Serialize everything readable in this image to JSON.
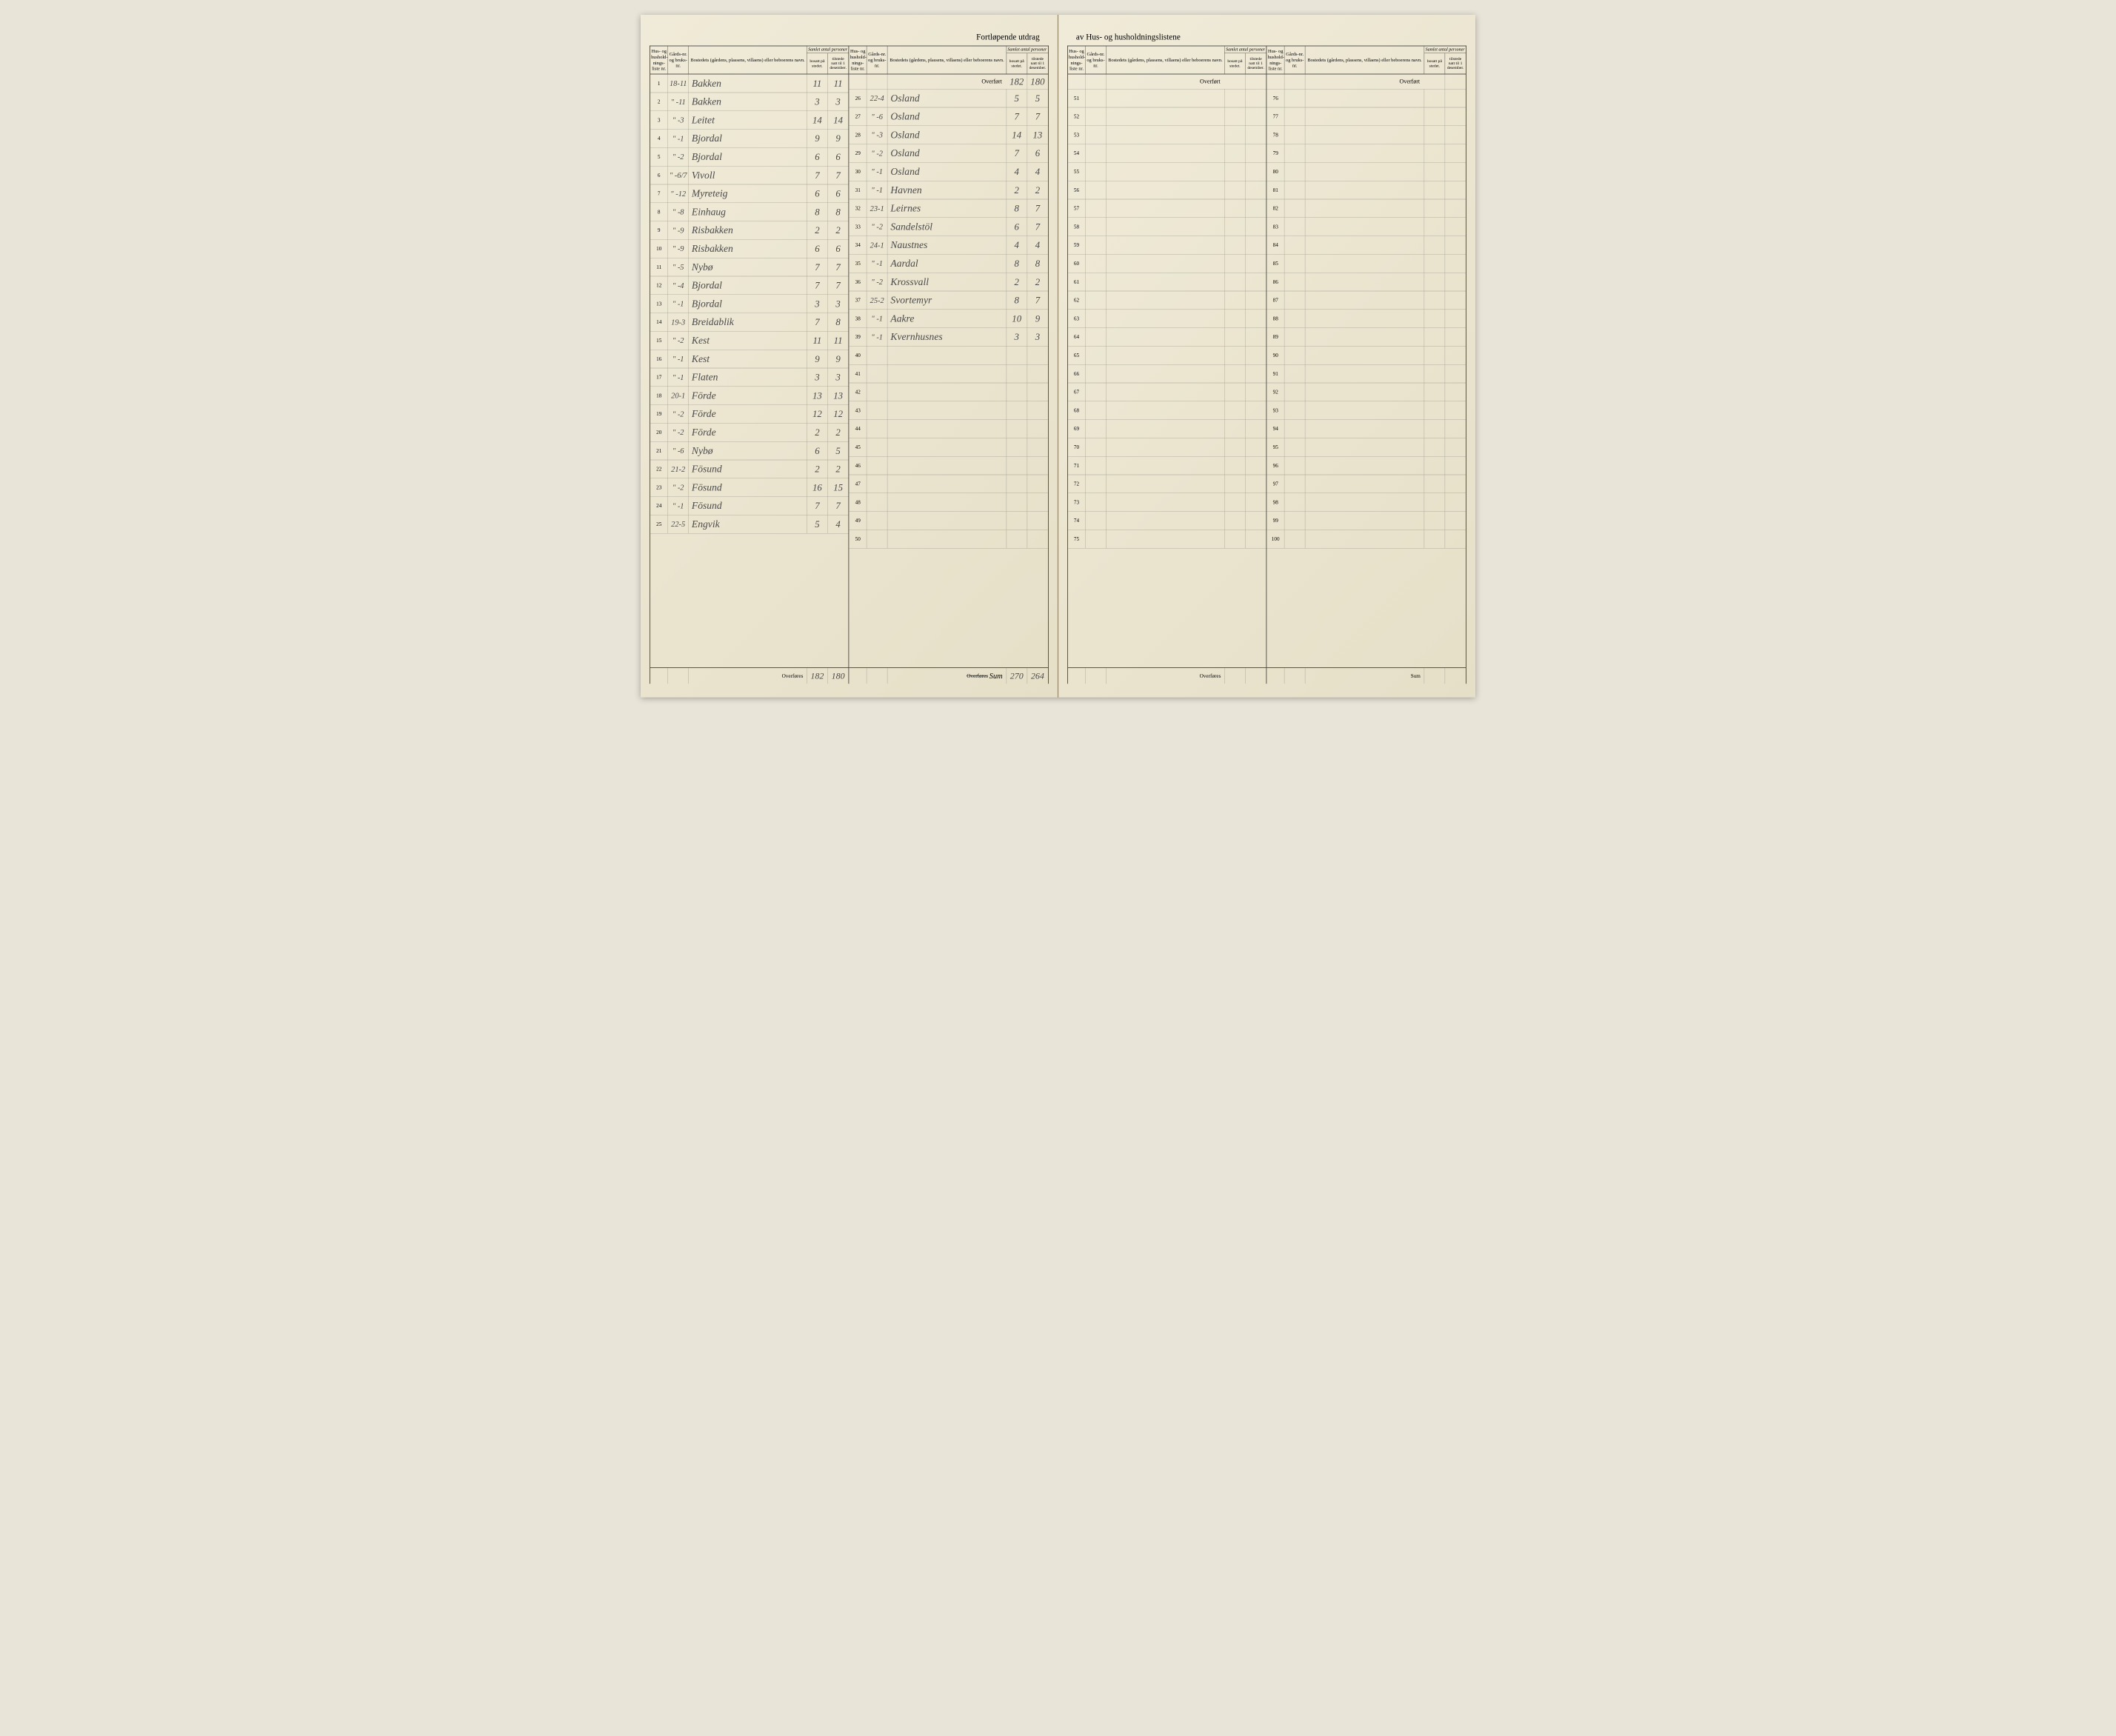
{
  "header": {
    "left_title": "Fortløpende utdrag",
    "right_title": "av Hus- og husholdningslistene"
  },
  "columns": {
    "liste": "Hus- og hushold-nings-liste nr.",
    "gard": "Gårds-nr. og bruks-nr.",
    "name": "Bostedets (gårdens, plassens, villaens) eller beboerens navn.",
    "samlet_top": "Samlet antal personer",
    "bosatt": "bosatt på stedet.",
    "tilstede": "tilstede natt til 1 desember."
  },
  "labels": {
    "overfort": "Overført",
    "overfores": "Overføres",
    "overfores_strike": "Overføres",
    "sum": "Sum",
    "sum_hand": "Sum"
  },
  "left_page": {
    "halfA": {
      "rows": [
        {
          "liste": "1",
          "gard": "18-11",
          "name": "Bakken",
          "bosatt": "11",
          "tilstede": "11"
        },
        {
          "liste": "2",
          "gard": "\" -11",
          "name": "Bakken",
          "bosatt": "3",
          "tilstede": "3"
        },
        {
          "liste": "3",
          "gard": "\" -3",
          "name": "Leitet",
          "bosatt": "14",
          "tilstede": "14"
        },
        {
          "liste": "4",
          "gard": "\" -1",
          "name": "Bjordal",
          "bosatt": "9",
          "tilstede": "9"
        },
        {
          "liste": "5",
          "gard": "\" -2",
          "name": "Bjordal",
          "bosatt": "6",
          "tilstede": "6"
        },
        {
          "liste": "6",
          "gard": "\" -6/7",
          "name": "Vivoll",
          "bosatt": "7",
          "tilstede": "7"
        },
        {
          "liste": "7",
          "gard": "\" -12",
          "name": "Myreteig",
          "bosatt": "6",
          "tilstede": "6"
        },
        {
          "liste": "8",
          "gard": "\" -8",
          "name": "Einhaug",
          "bosatt": "8",
          "tilstede": "8"
        },
        {
          "liste": "9",
          "gard": "\" -9",
          "name": "Risbakken",
          "bosatt": "2",
          "tilstede": "2"
        },
        {
          "liste": "10",
          "gard": "\" -9",
          "name": "Risbakken",
          "bosatt": "6",
          "tilstede": "6"
        },
        {
          "liste": "11",
          "gard": "\" -5",
          "name": "Nybø",
          "bosatt": "7",
          "tilstede": "7"
        },
        {
          "liste": "12",
          "gard": "\" -4",
          "name": "Bjordal",
          "bosatt": "7",
          "tilstede": "7"
        },
        {
          "liste": "13",
          "gard": "\" -1",
          "name": "Bjordal",
          "bosatt": "3",
          "tilstede": "3"
        },
        {
          "liste": "14",
          "gard": "19-3",
          "name": "Breidablik",
          "bosatt": "7",
          "tilstede": "8"
        },
        {
          "liste": "15",
          "gard": "\" -2",
          "name": "Kest",
          "bosatt": "11",
          "tilstede": "11"
        },
        {
          "liste": "16",
          "gard": "\" -1",
          "name": "Kest",
          "bosatt": "9",
          "tilstede": "9"
        },
        {
          "liste": "17",
          "gard": "\" -1",
          "name": "Flaten",
          "bosatt": "3",
          "tilstede": "3"
        },
        {
          "liste": "18",
          "gard": "20-1",
          "name": "Förde",
          "bosatt": "13",
          "tilstede": "13"
        },
        {
          "liste": "19",
          "gard": "\" -2",
          "name": "Förde",
          "bosatt": "12",
          "tilstede": "12"
        },
        {
          "liste": "20",
          "gard": "\" -2",
          "name": "Förde",
          "bosatt": "2",
          "tilstede": "2"
        },
        {
          "liste": "21",
          "gard": "\" -6",
          "name": "Nybø",
          "bosatt": "6",
          "tilstede": "5"
        },
        {
          "liste": "22",
          "gard": "21-2",
          "name": "Fösund",
          "bosatt": "2",
          "tilstede": "2"
        },
        {
          "liste": "23",
          "gard": "\" -2",
          "name": "Fösund",
          "bosatt": "16",
          "tilstede": "15"
        },
        {
          "liste": "24",
          "gard": "\" -1",
          "name": "Fösund",
          "bosatt": "7",
          "tilstede": "7"
        },
        {
          "liste": "25",
          "gard": "22-5",
          "name": "Engvik",
          "bosatt": "5",
          "tilstede": "4"
        }
      ],
      "footer": {
        "bosatt": "182",
        "tilstede": "180"
      }
    },
    "halfB": {
      "overfort": {
        "bosatt": "182",
        "tilstede": "180"
      },
      "rows": [
        {
          "liste": "26",
          "gard": "22-4",
          "name": "Osland",
          "bosatt": "5",
          "tilstede": "5"
        },
        {
          "liste": "27",
          "gard": "\" -6",
          "name": "Osland",
          "bosatt": "7",
          "tilstede": "7"
        },
        {
          "liste": "28",
          "gard": "\" -3",
          "name": "Osland",
          "bosatt": "14",
          "tilstede": "13"
        },
        {
          "liste": "29",
          "gard": "\" -2",
          "name": "Osland",
          "bosatt": "7",
          "tilstede": "6"
        },
        {
          "liste": "30",
          "gard": "\" -1",
          "name": "Osland",
          "bosatt": "4",
          "tilstede": "4"
        },
        {
          "liste": "31",
          "gard": "\" -1",
          "name": "Havnen",
          "bosatt": "2",
          "tilstede": "2"
        },
        {
          "liste": "32",
          "gard": "23-1",
          "name": "Leirnes",
          "bosatt": "8",
          "tilstede": "7"
        },
        {
          "liste": "33",
          "gard": "\" -2",
          "name": "Sandelstöl",
          "bosatt": "6",
          "tilstede": "7"
        },
        {
          "liste": "34",
          "gard": "24-1",
          "name": "Naustnes",
          "bosatt": "4",
          "tilstede": "4"
        },
        {
          "liste": "35",
          "gard": "\" -1",
          "name": "Aardal",
          "bosatt": "8",
          "tilstede": "8"
        },
        {
          "liste": "36",
          "gard": "\" -2",
          "name": "Krossvall",
          "bosatt": "2",
          "tilstede": "2"
        },
        {
          "liste": "37",
          "gard": "25-2",
          "name": "Svortemyr",
          "bosatt": "8",
          "tilstede": "7"
        },
        {
          "liste": "38",
          "gard": "\" -1",
          "name": "Aakre",
          "bosatt": "10",
          "tilstede": "9"
        },
        {
          "liste": "39",
          "gard": "\" -1",
          "name": "Kvernhusnes",
          "bosatt": "3",
          "tilstede": "3"
        },
        {
          "liste": "40",
          "gard": "",
          "name": "",
          "bosatt": "",
          "tilstede": ""
        },
        {
          "liste": "41",
          "gard": "",
          "name": "",
          "bosatt": "",
          "tilstede": ""
        },
        {
          "liste": "42",
          "gard": "",
          "name": "",
          "bosatt": "",
          "tilstede": ""
        },
        {
          "liste": "43",
          "gard": "",
          "name": "",
          "bosatt": "",
          "tilstede": ""
        },
        {
          "liste": "44",
          "gard": "",
          "name": "",
          "bosatt": "",
          "tilstede": ""
        },
        {
          "liste": "45",
          "gard": "",
          "name": "",
          "bosatt": "",
          "tilstede": ""
        },
        {
          "liste": "46",
          "gard": "",
          "name": "",
          "bosatt": "",
          "tilstede": ""
        },
        {
          "liste": "47",
          "gard": "",
          "name": "",
          "bosatt": "",
          "tilstede": ""
        },
        {
          "liste": "48",
          "gard": "",
          "name": "",
          "bosatt": "",
          "tilstede": ""
        },
        {
          "liste": "49",
          "gard": "",
          "name": "",
          "bosatt": "",
          "tilstede": ""
        },
        {
          "liste": "50",
          "gard": "",
          "name": "",
          "bosatt": "",
          "tilstede": ""
        }
      ],
      "footer": {
        "bosatt": "270",
        "tilstede": "264"
      }
    }
  },
  "right_page": {
    "halfA": {
      "rows": [
        {
          "liste": "51"
        },
        {
          "liste": "52"
        },
        {
          "liste": "53"
        },
        {
          "liste": "54"
        },
        {
          "liste": "55"
        },
        {
          "liste": "56"
        },
        {
          "liste": "57"
        },
        {
          "liste": "58"
        },
        {
          "liste": "59"
        },
        {
          "liste": "60"
        },
        {
          "liste": "61"
        },
        {
          "liste": "62"
        },
        {
          "liste": "63"
        },
        {
          "liste": "64"
        },
        {
          "liste": "65"
        },
        {
          "liste": "66"
        },
        {
          "liste": "67"
        },
        {
          "liste": "68"
        },
        {
          "liste": "69"
        },
        {
          "liste": "70"
        },
        {
          "liste": "71"
        },
        {
          "liste": "72"
        },
        {
          "liste": "73"
        },
        {
          "liste": "74"
        },
        {
          "liste": "75"
        }
      ]
    },
    "halfB": {
      "rows": [
        {
          "liste": "76"
        },
        {
          "liste": "77"
        },
        {
          "liste": "78"
        },
        {
          "liste": "79"
        },
        {
          "liste": "80"
        },
        {
          "liste": "81"
        },
        {
          "liste": "82"
        },
        {
          "liste": "83"
        },
        {
          "liste": "84"
        },
        {
          "liste": "85"
        },
        {
          "liste": "86"
        },
        {
          "liste": "87"
        },
        {
          "liste": "88"
        },
        {
          "liste": "89"
        },
        {
          "liste": "90"
        },
        {
          "liste": "91"
        },
        {
          "liste": "92"
        },
        {
          "liste": "93"
        },
        {
          "liste": "94"
        },
        {
          "liste": "95"
        },
        {
          "liste": "96"
        },
        {
          "liste": "97"
        },
        {
          "liste": "98"
        },
        {
          "liste": "99"
        },
        {
          "liste": "100"
        }
      ]
    }
  }
}
